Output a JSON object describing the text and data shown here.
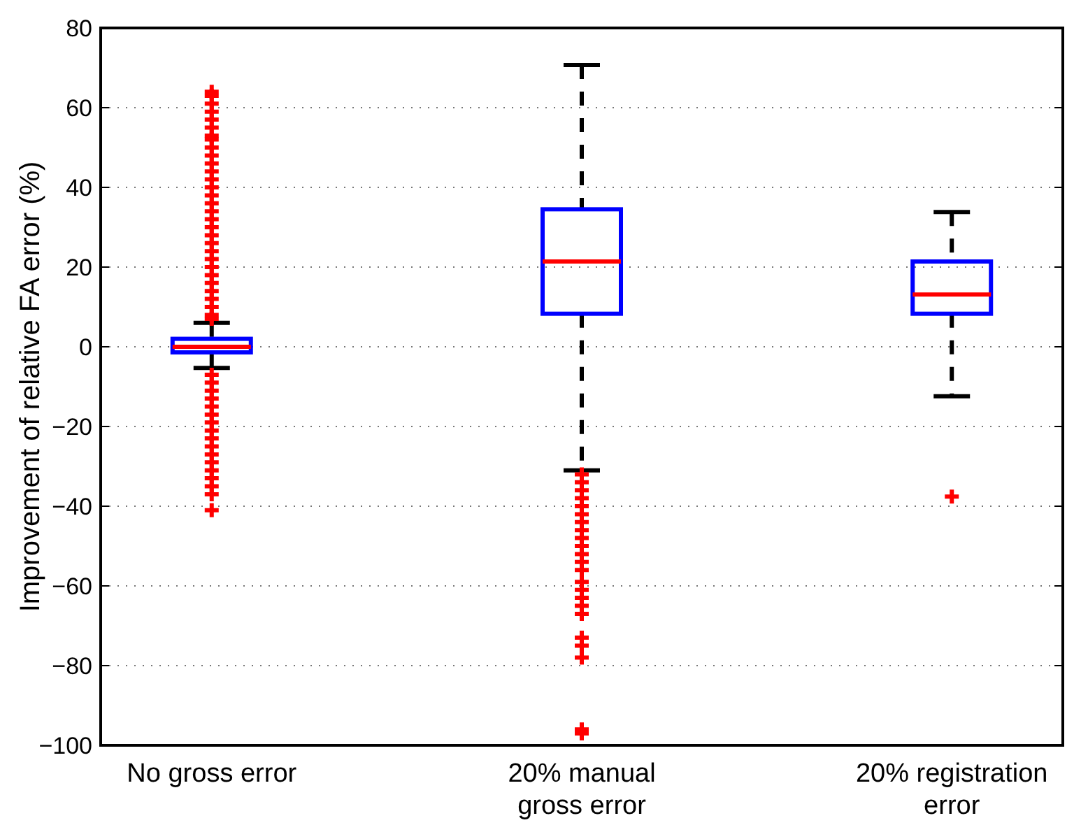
{
  "chart_data": {
    "type": "box",
    "ylabel": "Improvement of relative FA error (%)",
    "categories": [
      "No gross error",
      "20% manual\ngross error",
      "20% registration\nerror"
    ],
    "ylim": [
      -100,
      80
    ],
    "yticks": [
      -100,
      -80,
      -60,
      -40,
      -20,
      0,
      20,
      40,
      60,
      80
    ],
    "grid": "y",
    "marker": "cross",
    "series": [
      {
        "color": "#0000ff",
        "boxes": [
          {
            "low": -5.3,
            "q1": -1.4,
            "median": 0,
            "q3": 2,
            "high": 6,
            "outliers": [
              7,
              8,
              10,
              12,
              14,
              16,
              18,
              20,
              22,
              24,
              26,
              28,
              30,
              32,
              34,
              36,
              38,
              40,
              42,
              44,
              46,
              48,
              50,
              52,
              53,
              55,
              57,
              59,
              61,
              63,
              64,
              -7,
              -9,
              -11,
              -13,
              -15,
              -17,
              -19,
              -21,
              -23,
              -25,
              -27,
              -29,
              -31,
              -33,
              -35,
              -37,
              -41
            ]
          },
          {
            "low": -31,
            "q1": 8.3,
            "median": 21.4,
            "q3": 34.5,
            "high": 70.7,
            "outliers": [
              -32,
              -34,
              -36,
              -38,
              -40,
              -42,
              -44,
              -46,
              -48,
              -50,
              -52,
              -54,
              -56,
              -59,
              -61,
              -63,
              -65,
              -67,
              -73,
              -75,
              -78,
              -96,
              -97
            ]
          },
          {
            "low": -12.4,
            "q1": 8.3,
            "median": 13.1,
            "q3": 21.4,
            "high": 33.8,
            "outliers": [
              -37.6
            ]
          }
        ]
      }
    ]
  }
}
